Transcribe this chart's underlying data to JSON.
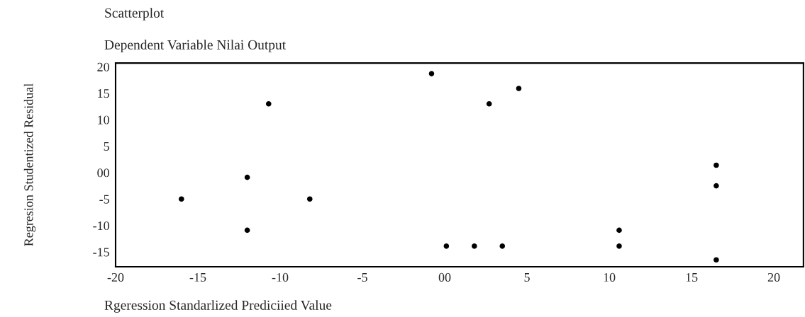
{
  "chart_data": {
    "type": "scatter",
    "title": "Scatterplot",
    "subtitle": "Dependent Variable Nilai Output",
    "xlabel": "Rgeression Standarlized Prediciied Value",
    "ylabel": "Regresion Studentized Residual",
    "x": [
      -16.0,
      -12.0,
      -12.0,
      -10.7,
      -8.2,
      -0.8,
      0.1,
      1.8,
      2.7,
      3.5,
      4.5,
      10.6,
      10.6,
      16.5,
      16.5,
      16.5
    ],
    "series": [
      {
        "color": "#000000",
        "values": [
          -5.0,
          -0.9,
          -10.9,
          13.0,
          -5.0,
          18.7,
          -13.9,
          -13.9,
          13.0,
          -13.9,
          15.9,
          -10.9,
          -13.9,
          1.4,
          -2.5,
          -16.5
        ]
      }
    ],
    "xlim": [
      -20,
      21.8
    ],
    "ylim": [
      -17.8,
      20.7
    ],
    "xticks": [
      -20,
      -15,
      -10,
      -5,
      {
        "value": 0,
        "label": "00"
      },
      5,
      10,
      15,
      20
    ],
    "yticks": [
      -15,
      -10,
      -5,
      {
        "value": 0,
        "label": "00"
      },
      5,
      10,
      15,
      20
    ],
    "marker": "circle",
    "grid": false
  }
}
